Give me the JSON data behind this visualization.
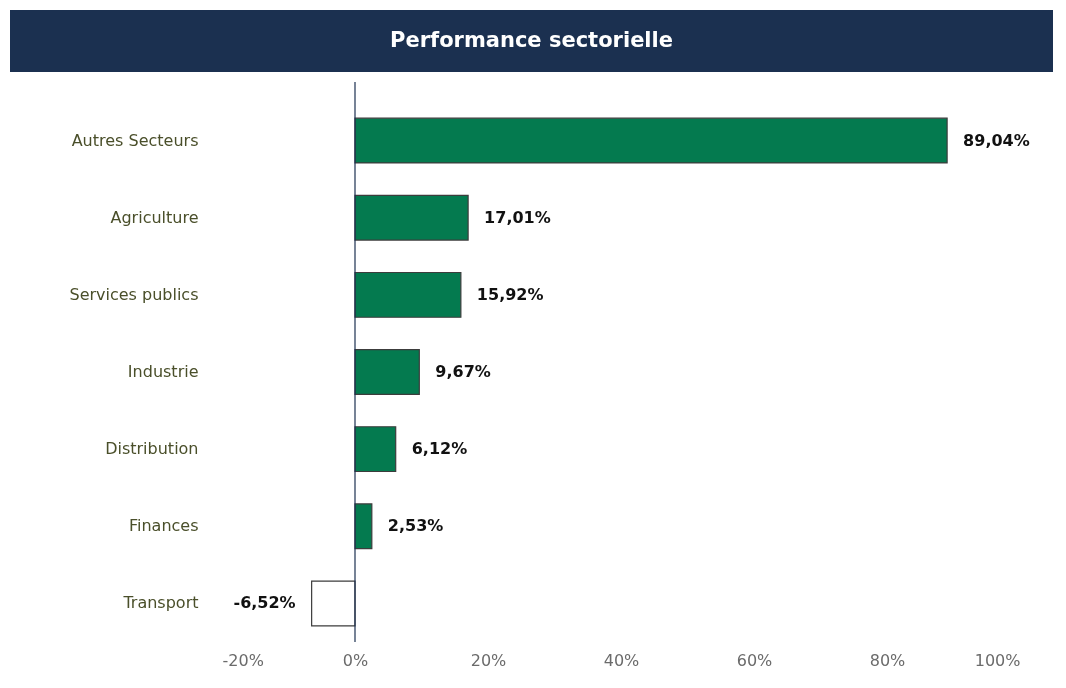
{
  "chart_data": {
    "type": "bar",
    "orientation": "horizontal",
    "title": "Performance sectorielle",
    "categories": [
      "Autres Secteurs",
      "Agriculture",
      "Services publics",
      "Industrie",
      "Distribution",
      "Finances",
      "Transport"
    ],
    "values": [
      89.04,
      17.01,
      15.92,
      9.67,
      6.12,
      2.53,
      -6.52
    ],
    "colors": [
      "#047a4f",
      "#047a4f",
      "#047a4f",
      "#047a4f",
      "#047a4f",
      "#047a4f",
      "#ffffff"
    ],
    "value_labels": [
      "89,04%",
      "17,01%",
      "15,92%",
      "9,67%",
      "6,12%",
      "2,53%",
      "-6,52%"
    ],
    "xlim": [
      -20,
      100
    ],
    "xticks": [
      {
        "value": -20,
        "label": "-20%"
      },
      {
        "value": 0,
        "label": "0%"
      },
      {
        "value": 20,
        "label": "20%"
      },
      {
        "value": 40,
        "label": "40%"
      },
      {
        "value": 60,
        "label": "60%"
      },
      {
        "value": 80,
        "label": "80%"
      },
      {
        "value": 100,
        "label": "100%"
      }
    ],
    "grid": false,
    "legend": false
  }
}
